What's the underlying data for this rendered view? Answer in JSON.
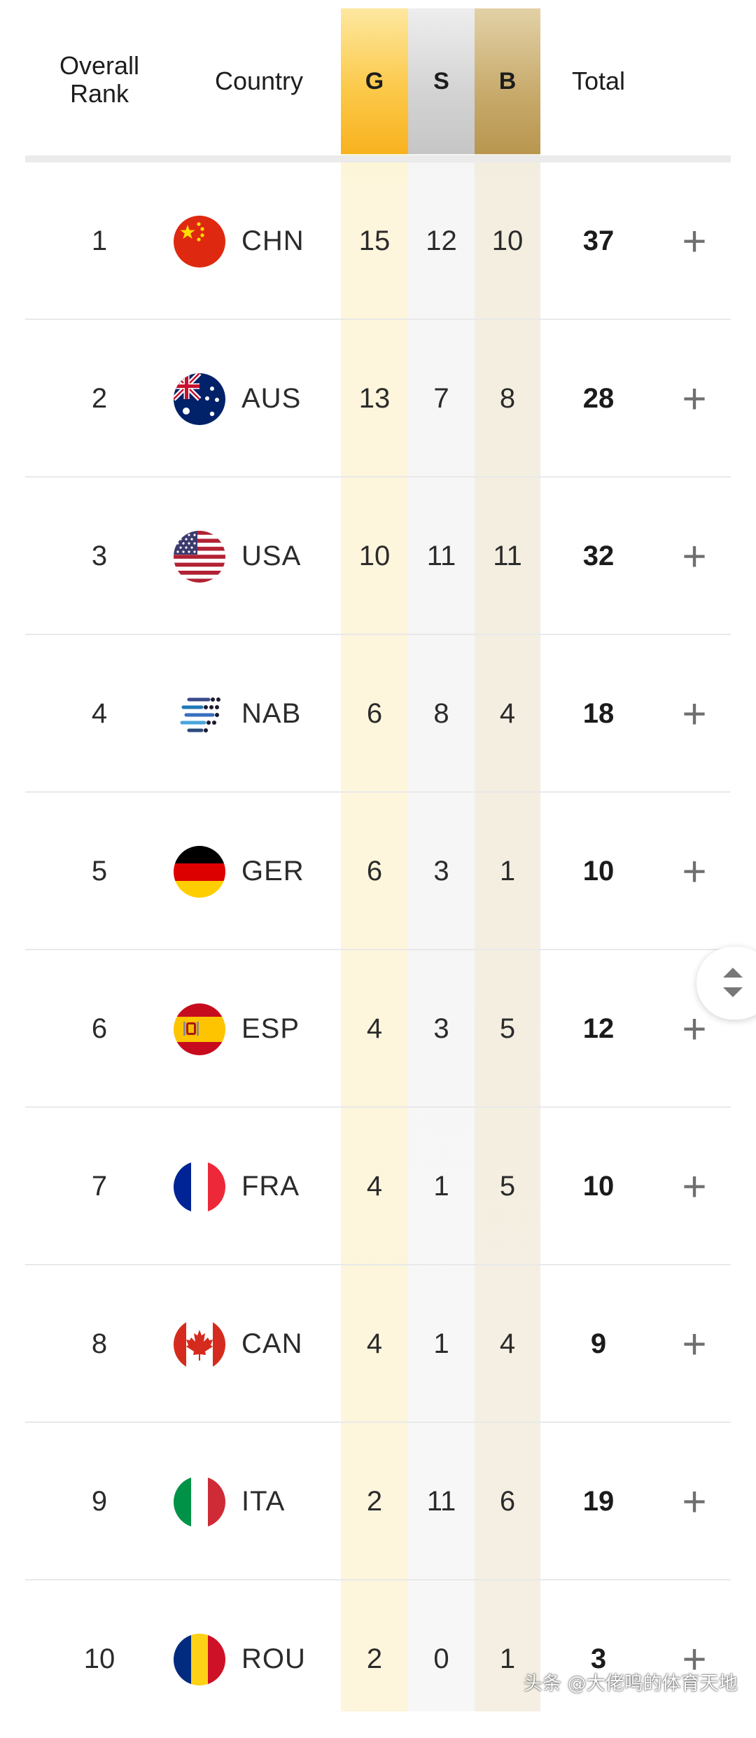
{
  "header": {
    "rank_label": "Overall Rank",
    "country_label": "Country",
    "gold_label": "G",
    "silver_label": "S",
    "bronze_label": "B",
    "total_label": "Total"
  },
  "rows": [
    {
      "rank": "1",
      "code": "CHN",
      "gold": "15",
      "silver": "12",
      "bronze": "10",
      "total": "37",
      "flag": "china-flag-icon"
    },
    {
      "rank": "2",
      "code": "AUS",
      "gold": "13",
      "silver": "7",
      "bronze": "8",
      "total": "28",
      "flag": "australia-flag-icon"
    },
    {
      "rank": "3",
      "code": "USA",
      "gold": "10",
      "silver": "11",
      "bronze": "11",
      "total": "32",
      "flag": "usa-flag-icon"
    },
    {
      "rank": "4",
      "code": "NAB",
      "gold": "6",
      "silver": "8",
      "bronze": "4",
      "total": "18",
      "flag": "neutral-athletes-icon"
    },
    {
      "rank": "5",
      "code": "GER",
      "gold": "6",
      "silver": "3",
      "bronze": "1",
      "total": "10",
      "flag": "germany-flag-icon"
    },
    {
      "rank": "6",
      "code": "ESP",
      "gold": "4",
      "silver": "3",
      "bronze": "5",
      "total": "12",
      "flag": "spain-flag-icon"
    },
    {
      "rank": "7",
      "code": "FRA",
      "gold": "4",
      "silver": "1",
      "bronze": "5",
      "total": "10",
      "flag": "france-flag-icon"
    },
    {
      "rank": "8",
      "code": "CAN",
      "gold": "4",
      "silver": "1",
      "bronze": "4",
      "total": "9",
      "flag": "canada-flag-icon"
    },
    {
      "rank": "9",
      "code": "ITA",
      "gold": "2",
      "silver": "11",
      "bronze": "6",
      "total": "19",
      "flag": "italy-flag-icon"
    },
    {
      "rank": "10",
      "code": "ROU",
      "gold": "2",
      "silver": "0",
      "bronze": "1",
      "total": "3",
      "flag": "romania-flag-icon"
    }
  ],
  "expand_symbol": "+",
  "icons": {
    "expand": "plus-icon",
    "scroll": "scroll-up-down-icon"
  },
  "colors": {
    "gold": "#f8b21f",
    "silver": "#c6c6c6",
    "bronze": "#b8964f"
  },
  "watermark": "头条 @大佬鸣的体育天地"
}
